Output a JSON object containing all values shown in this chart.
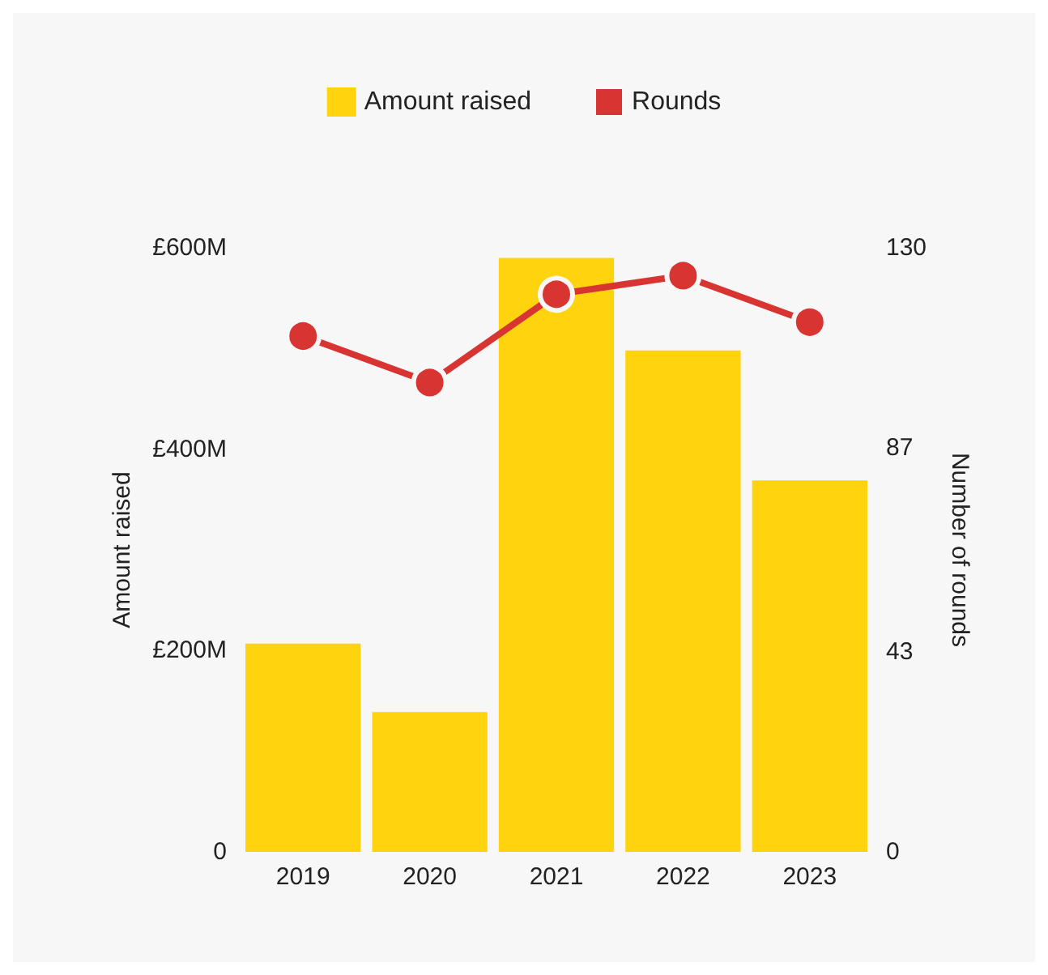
{
  "chart_data": {
    "type": "bar",
    "categories": [
      "2019",
      "2020",
      "2021",
      "2022",
      "2023"
    ],
    "series": [
      {
        "name": "Amount raised",
        "color": "#ffd40f",
        "values": [
          207,
          139,
          590,
          498,
          369
        ]
      },
      {
        "name": "Rounds",
        "type": "line",
        "axis": "y2",
        "color": "#d73432",
        "values": [
          111,
          101,
          120,
          124,
          114
        ]
      }
    ],
    "ylabel": "Amount raised",
    "y2label": "Number of rounds",
    "ylim": [
      0,
      600
    ],
    "yticks": [
      {
        "value": 0,
        "label": "0"
      },
      {
        "value": 200,
        "label": "£200M"
      },
      {
        "value": 400,
        "label": "£400M"
      },
      {
        "value": 600,
        "label": "£600M"
      }
    ],
    "y2lim": [
      0,
      130
    ],
    "y2ticks": [
      0,
      43,
      87,
      130
    ],
    "grid": false,
    "legend": "top",
    "marker": "circle",
    "line_style": "solid"
  }
}
